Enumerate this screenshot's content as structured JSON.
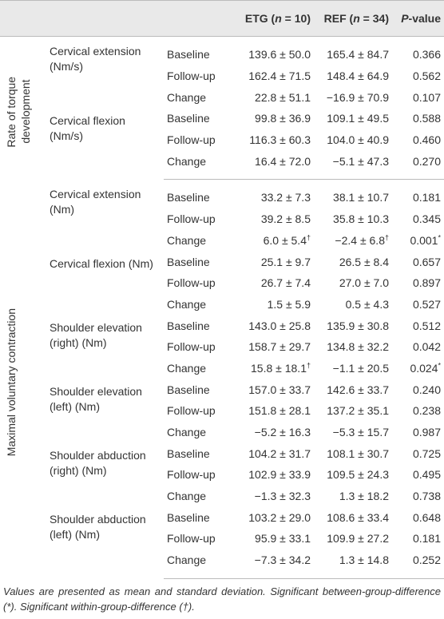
{
  "table": {
    "header": {
      "etg": [
        "ETG (",
        "n",
        " = 10)"
      ],
      "ref": [
        "REF (",
        "n",
        " = 34)"
      ],
      "p": [
        "P",
        "-value"
      ]
    },
    "groups": [
      {
        "label": "Rate of torque development",
        "measures": [
          {
            "name": "Cervical extension (Nm/s)",
            "rows": [
              [
                "Baseline",
                "139.6 ± 50.0",
                "165.4 ± 84.7",
                "0.366"
              ],
              [
                "Follow-up",
                "162.4 ± 71.5",
                "148.4 ± 64.9",
                "0.562"
              ],
              [
                "Change",
                "22.8 ± 51.1",
                "−16.9 ± 70.9",
                "0.107"
              ]
            ]
          },
          {
            "name": "Cervical flexion (Nm/s)",
            "rows": [
              [
                "Baseline",
                "99.8 ± 36.9",
                "109.1 ± 49.5",
                "0.588"
              ],
              [
                "Follow-up",
                "116.3 ± 60.3",
                "104.0 ± 40.9",
                "0.460"
              ],
              [
                "Change",
                "16.4 ± 72.0",
                "−5.1 ± 47.3",
                "0.270"
              ]
            ]
          }
        ]
      },
      {
        "label": "Maximal voluntary contraction",
        "measures": [
          {
            "name": "Cervical extension (Nm)",
            "rows": [
              [
                "Baseline",
                "33.2 ± 7.3",
                "38.1 ± 10.7",
                "0.181"
              ],
              [
                "Follow-up",
                "39.2 ± 8.5",
                "35.8 ± 10.3",
                "0.345"
              ],
              [
                "Change",
                "6.0 ± 5.4†",
                "−2.4 ± 6.8†",
                "0.001*"
              ]
            ]
          },
          {
            "name": "Cervical flexion (Nm)",
            "rows": [
              [
                "Baseline",
                "25.1 ± 9.7",
                "26.5 ± 8.4",
                "0.657"
              ],
              [
                "Follow-up",
                "26.7 ± 7.4",
                "27.0 ± 7.0",
                "0.897"
              ],
              [
                "Change",
                "1.5 ± 5.9",
                "0.5 ± 4.3",
                "0.527"
              ]
            ]
          },
          {
            "name": "Shoulder elevation (right) (Nm)",
            "rows": [
              [
                "Baseline",
                "143.0 ± 25.8",
                "135.9 ± 30.8",
                "0.512"
              ],
              [
                "Follow-up",
                "158.7 ± 29.7",
                "134.8 ± 32.2",
                "0.042"
              ],
              [
                "Change",
                "15.8 ± 18.1†",
                "−1.1 ± 20.5",
                "0.024*"
              ]
            ]
          },
          {
            "name": "Shoulder elevation (left) (Nm)",
            "rows": [
              [
                "Baseline",
                "157.0 ± 33.7",
                "142.6 ± 33.7",
                "0.240"
              ],
              [
                "Follow-up",
                "151.8 ± 28.1",
                "137.2 ± 35.1",
                "0.238"
              ],
              [
                "Change",
                "−5.2 ± 16.3",
                "−5.3 ± 15.7",
                "0.987"
              ]
            ]
          },
          {
            "name": "Shoulder abduction (right) (Nm)",
            "rows": [
              [
                "Baseline",
                "104.2 ± 31.7",
                "108.1 ± 30.7",
                "0.725"
              ],
              [
                "Follow-up",
                "102.9 ± 33.9",
                "109.5 ± 24.3",
                "0.495"
              ],
              [
                "Change",
                "−1.3 ± 32.3",
                "1.3 ± 18.2",
                "0.738"
              ]
            ]
          },
          {
            "name": "Shoulder abduction (left) (Nm)",
            "rows": [
              [
                "Baseline",
                "103.2 ± 29.0",
                "108.6 ± 33.4",
                "0.648"
              ],
              [
                "Follow-up",
                "95.9 ± 33.1",
                "109.9 ± 27.2",
                "0.181"
              ],
              [
                "Change",
                "−7.3 ± 34.2",
                "1.3 ± 14.8",
                "0.252"
              ]
            ]
          }
        ]
      }
    ],
    "footnote": "Values are presented as mean and standard deviation. Significant between-group-difference (*). Significant within-group-difference (†)."
  }
}
